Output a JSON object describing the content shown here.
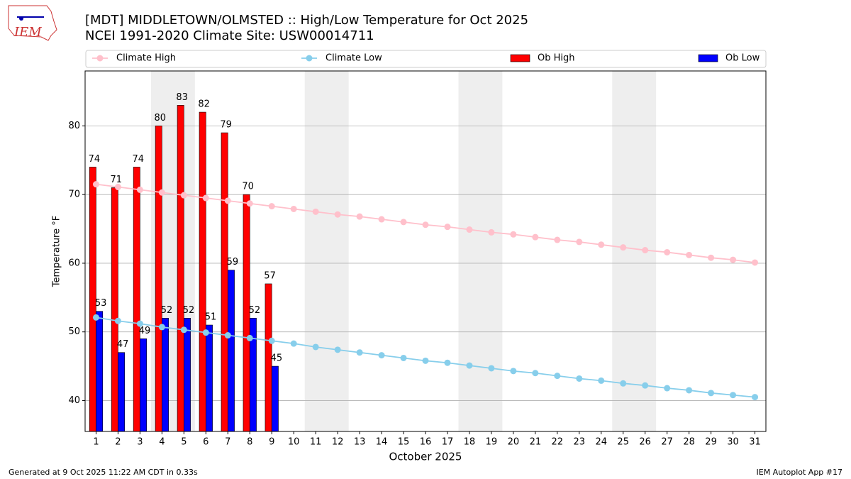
{
  "header": {
    "logo": "IEM"
  },
  "chart_data": {
    "type": "bar",
    "title": "[MDT] MIDDLETOWN/OLMSTED :: High/Low Temperature for Oct 2025",
    "subtitle": "NCEI 1991-2020 Climate Site: USW00014711",
    "x_label": "October 2025",
    "y_label": "Temperature °F",
    "x": [
      1,
      2,
      3,
      4,
      5,
      6,
      7,
      8,
      9,
      10,
      11,
      12,
      13,
      14,
      15,
      16,
      17,
      18,
      19,
      20,
      21,
      22,
      23,
      24,
      25,
      26,
      27,
      28,
      29,
      30,
      31
    ],
    "xlim": [
      0.5,
      31.5
    ],
    "xticks": [
      1,
      2,
      3,
      4,
      5,
      6,
      7,
      8,
      9,
      10,
      11,
      12,
      13,
      14,
      15,
      16,
      17,
      18,
      19,
      20,
      21,
      22,
      23,
      24,
      25,
      26,
      27,
      28,
      29,
      30,
      31
    ],
    "ylim": [
      35.5,
      88
    ],
    "yticks": [
      40,
      50,
      60,
      70,
      80
    ],
    "grid": true,
    "legend": "top",
    "shaded_spans": [
      [
        3.5,
        5.5
      ],
      [
        10.5,
        12.5
      ],
      [
        17.5,
        19.5
      ],
      [
        24.5,
        26.5
      ]
    ],
    "series": [
      {
        "name": "Climate High",
        "type": "line",
        "color": "#ffc0cb",
        "values": [
          71.5,
          71.1,
          70.7,
          70.3,
          69.9,
          69.5,
          69.1,
          68.7,
          68.3,
          67.9,
          67.5,
          67.1,
          66.8,
          66.4,
          66.0,
          65.6,
          65.3,
          64.9,
          64.5,
          64.2,
          63.8,
          63.4,
          63.1,
          62.7,
          62.3,
          61.9,
          61.6,
          61.2,
          60.8,
          60.5,
          60.1
        ]
      },
      {
        "name": "Climate Low",
        "type": "line",
        "color": "#87ceeb",
        "values": [
          52.1,
          51.6,
          51.2,
          50.7,
          50.3,
          49.9,
          49.5,
          49.1,
          48.7,
          48.3,
          47.8,
          47.4,
          47.0,
          46.6,
          46.2,
          45.8,
          45.5,
          45.1,
          44.7,
          44.3,
          44.0,
          43.6,
          43.2,
          42.9,
          42.5,
          42.2,
          41.8,
          41.5,
          41.1,
          40.8,
          40.5
        ]
      },
      {
        "name": "Ob High",
        "type": "bar",
        "color": "#ff0000",
        "values": [
          74,
          71,
          74,
          80,
          83,
          82,
          79,
          70,
          57,
          null,
          null,
          null,
          null,
          null,
          null,
          null,
          null,
          null,
          null,
          null,
          null,
          null,
          null,
          null,
          null,
          null,
          null,
          null,
          null,
          null,
          null
        ]
      },
      {
        "name": "Ob Low",
        "type": "bar",
        "color": "#0000ff",
        "values": [
          53,
          47,
          49,
          52,
          52,
          51,
          59,
          52,
          45,
          null,
          null,
          null,
          null,
          null,
          null,
          null,
          null,
          null,
          null,
          null,
          null,
          null,
          null,
          null,
          null,
          null,
          null,
          null,
          null,
          null,
          null
        ]
      }
    ]
  },
  "footer": {
    "left": "Generated at 9 Oct 2025 11:22 AM CDT in 0.33s",
    "right": "IEM Autoplot App #17"
  }
}
